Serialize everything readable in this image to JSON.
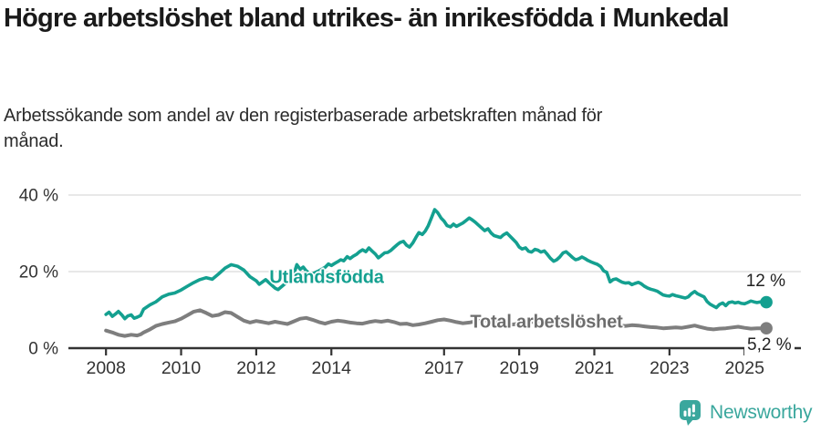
{
  "chart_data": {
    "type": "line",
    "title": "Högre arbetslöshet bland utrikes- än inrikesfödda i Munkedal",
    "subtitle": "Arbetssökande som andel av den registerbaserade arbetskraften månad för månad.",
    "xlabel": "",
    "ylabel": "",
    "unit": "%",
    "grid": "horizontal",
    "legend": "inline-labels",
    "x_range": [
      2007,
      2026.5
    ],
    "ylim": [
      0,
      40
    ],
    "x_ticks": [
      2008,
      2010,
      2012,
      2014,
      2017,
      2019,
      2021,
      2023,
      2025
    ],
    "y_ticks": [
      {
        "value": 0,
        "label": "0 %"
      },
      {
        "value": 20,
        "label": "20 %"
      },
      {
        "value": 40,
        "label": "40 %"
      }
    ],
    "axis_color": "#333333",
    "grid_color": "#d9d9d9",
    "series": [
      {
        "name": "Utlandsfödda",
        "color": "#14a090",
        "end_label": "12 %",
        "end_value": 12,
        "points": [
          [
            2008.0,
            8.8
          ],
          [
            2008.08,
            9.4
          ],
          [
            2008.17,
            8.3
          ],
          [
            2008.25,
            8.9
          ],
          [
            2008.33,
            9.6
          ],
          [
            2008.42,
            8.7
          ],
          [
            2008.5,
            7.7
          ],
          [
            2008.58,
            8.4
          ],
          [
            2008.67,
            8.7
          ],
          [
            2008.75,
            7.8
          ],
          [
            2008.83,
            8.1
          ],
          [
            2008.92,
            8.5
          ],
          [
            2009.0,
            10.2
          ],
          [
            2009.17,
            11.3
          ],
          [
            2009.33,
            12.1
          ],
          [
            2009.5,
            13.4
          ],
          [
            2009.67,
            14.1
          ],
          [
            2009.83,
            14.4
          ],
          [
            2010.0,
            15.2
          ],
          [
            2010.17,
            16.2
          ],
          [
            2010.33,
            17.1
          ],
          [
            2010.5,
            17.9
          ],
          [
            2010.67,
            18.4
          ],
          [
            2010.83,
            18.0
          ],
          [
            2011.0,
            19.4
          ],
          [
            2011.17,
            20.9
          ],
          [
            2011.33,
            21.8
          ],
          [
            2011.5,
            21.4
          ],
          [
            2011.67,
            20.4
          ],
          [
            2011.83,
            18.7
          ],
          [
            2012.0,
            17.6
          ],
          [
            2012.08,
            16.7
          ],
          [
            2012.25,
            17.9
          ],
          [
            2012.42,
            16.4
          ],
          [
            2012.5,
            15.7
          ],
          [
            2012.58,
            15.3
          ],
          [
            2012.75,
            16.7
          ],
          [
            2012.92,
            17.8
          ],
          [
            2013.0,
            19.3
          ],
          [
            2013.08,
            21.8
          ],
          [
            2013.17,
            20.6
          ],
          [
            2013.25,
            21.2
          ],
          [
            2013.33,
            20.2
          ],
          [
            2013.42,
            19.6
          ],
          [
            2013.5,
            19.4
          ],
          [
            2013.58,
            19.8
          ],
          [
            2013.67,
            20.2
          ],
          [
            2013.75,
            20.7
          ],
          [
            2013.83,
            21.1
          ],
          [
            2013.92,
            22.0
          ],
          [
            2014.0,
            21.6
          ],
          [
            2014.08,
            22.1
          ],
          [
            2014.17,
            22.6
          ],
          [
            2014.25,
            23.1
          ],
          [
            2014.33,
            22.8
          ],
          [
            2014.42,
            23.9
          ],
          [
            2014.5,
            23.4
          ],
          [
            2014.58,
            24.0
          ],
          [
            2014.67,
            24.5
          ],
          [
            2014.75,
            25.2
          ],
          [
            2014.83,
            25.7
          ],
          [
            2014.92,
            25.2
          ],
          [
            2015.0,
            26.2
          ],
          [
            2015.08,
            25.4
          ],
          [
            2015.17,
            24.6
          ],
          [
            2015.25,
            23.6
          ],
          [
            2015.33,
            24.2
          ],
          [
            2015.42,
            24.9
          ],
          [
            2015.5,
            25.0
          ],
          [
            2015.58,
            25.5
          ],
          [
            2015.67,
            26.3
          ],
          [
            2015.75,
            27.0
          ],
          [
            2015.83,
            27.6
          ],
          [
            2015.92,
            27.9
          ],
          [
            2016.0,
            26.9
          ],
          [
            2016.08,
            26.4
          ],
          [
            2016.17,
            27.5
          ],
          [
            2016.25,
            28.9
          ],
          [
            2016.33,
            30.2
          ],
          [
            2016.42,
            29.7
          ],
          [
            2016.5,
            30.6
          ],
          [
            2016.58,
            32.0
          ],
          [
            2016.67,
            34.2
          ],
          [
            2016.75,
            36.2
          ],
          [
            2016.83,
            35.4
          ],
          [
            2016.92,
            34.0
          ],
          [
            2017.0,
            33.2
          ],
          [
            2017.08,
            32.0
          ],
          [
            2017.17,
            31.7
          ],
          [
            2017.25,
            32.4
          ],
          [
            2017.33,
            31.8
          ],
          [
            2017.5,
            32.7
          ],
          [
            2017.67,
            34.0
          ],
          [
            2017.75,
            33.5
          ],
          [
            2017.83,
            32.9
          ],
          [
            2017.92,
            32.1
          ],
          [
            2018.0,
            31.4
          ],
          [
            2018.08,
            30.7
          ],
          [
            2018.17,
            31.2
          ],
          [
            2018.25,
            30.1
          ],
          [
            2018.33,
            29.4
          ],
          [
            2018.5,
            28.9
          ],
          [
            2018.58,
            29.6
          ],
          [
            2018.67,
            30.1
          ],
          [
            2018.83,
            28.5
          ],
          [
            2018.92,
            27.6
          ],
          [
            2019.0,
            26.4
          ],
          [
            2019.08,
            25.9
          ],
          [
            2019.17,
            26.2
          ],
          [
            2019.25,
            25.3
          ],
          [
            2019.33,
            25.1
          ],
          [
            2019.42,
            25.8
          ],
          [
            2019.5,
            25.6
          ],
          [
            2019.58,
            25.1
          ],
          [
            2019.67,
            25.4
          ],
          [
            2019.75,
            24.5
          ],
          [
            2019.83,
            23.5
          ],
          [
            2019.92,
            22.7
          ],
          [
            2020.0,
            23.1
          ],
          [
            2020.08,
            23.8
          ],
          [
            2020.17,
            24.9
          ],
          [
            2020.25,
            25.2
          ],
          [
            2020.33,
            24.5
          ],
          [
            2020.42,
            23.7
          ],
          [
            2020.5,
            23.1
          ],
          [
            2020.58,
            23.3
          ],
          [
            2020.67,
            23.8
          ],
          [
            2020.75,
            23.4
          ],
          [
            2020.83,
            22.9
          ],
          [
            2020.92,
            22.5
          ],
          [
            2021.0,
            22.2
          ],
          [
            2021.08,
            21.9
          ],
          [
            2021.17,
            21.3
          ],
          [
            2021.25,
            20.2
          ],
          [
            2021.33,
            19.8
          ],
          [
            2021.42,
            17.3
          ],
          [
            2021.5,
            17.9
          ],
          [
            2021.58,
            18.1
          ],
          [
            2021.67,
            17.6
          ],
          [
            2021.75,
            17.2
          ],
          [
            2021.83,
            17.0
          ],
          [
            2021.92,
            17.1
          ],
          [
            2022.0,
            16.6
          ],
          [
            2022.08,
            16.9
          ],
          [
            2022.17,
            17.2
          ],
          [
            2022.25,
            16.8
          ],
          [
            2022.33,
            16.2
          ],
          [
            2022.42,
            15.7
          ],
          [
            2022.5,
            15.4
          ],
          [
            2022.58,
            15.2
          ],
          [
            2022.67,
            14.9
          ],
          [
            2022.75,
            14.4
          ],
          [
            2022.83,
            13.9
          ],
          [
            2022.92,
            13.7
          ],
          [
            2023.0,
            13.6
          ],
          [
            2023.08,
            14.0
          ],
          [
            2023.17,
            13.7
          ],
          [
            2023.25,
            13.5
          ],
          [
            2023.33,
            13.3
          ],
          [
            2023.42,
            13.1
          ],
          [
            2023.5,
            13.4
          ],
          [
            2023.58,
            14.2
          ],
          [
            2023.67,
            14.8
          ],
          [
            2023.75,
            14.2
          ],
          [
            2023.83,
            13.8
          ],
          [
            2023.92,
            13.4
          ],
          [
            2024.0,
            12.2
          ],
          [
            2024.08,
            11.5
          ],
          [
            2024.17,
            11.0
          ],
          [
            2024.25,
            10.6
          ],
          [
            2024.33,
            11.4
          ],
          [
            2024.42,
            11.8
          ],
          [
            2024.5,
            11.1
          ],
          [
            2024.58,
            11.9
          ],
          [
            2024.67,
            12.1
          ],
          [
            2024.75,
            11.8
          ],
          [
            2024.83,
            12.0
          ],
          [
            2024.92,
            11.7
          ],
          [
            2025.0,
            11.6
          ],
          [
            2025.08,
            11.9
          ],
          [
            2025.17,
            12.3
          ],
          [
            2025.25,
            12.1
          ],
          [
            2025.33,
            11.9
          ],
          [
            2025.42,
            12.1
          ],
          [
            2025.58,
            12.0
          ]
        ]
      },
      {
        "name": "Total arbetslöshet",
        "color": "#7e7e7e",
        "end_label": "5,2 %",
        "end_value": 5.2,
        "points": [
          [
            2008.0,
            4.6
          ],
          [
            2008.17,
            4.1
          ],
          [
            2008.33,
            3.5
          ],
          [
            2008.5,
            3.2
          ],
          [
            2008.67,
            3.5
          ],
          [
            2008.83,
            3.3
          ],
          [
            2008.92,
            3.6
          ],
          [
            2009.0,
            4.1
          ],
          [
            2009.17,
            4.9
          ],
          [
            2009.33,
            5.8
          ],
          [
            2009.5,
            6.3
          ],
          [
            2009.67,
            6.7
          ],
          [
            2009.83,
            7.0
          ],
          [
            2010.0,
            7.7
          ],
          [
            2010.17,
            8.6
          ],
          [
            2010.33,
            9.5
          ],
          [
            2010.5,
            9.9
          ],
          [
            2010.67,
            9.2
          ],
          [
            2010.83,
            8.4
          ],
          [
            2011.0,
            8.7
          ],
          [
            2011.17,
            9.4
          ],
          [
            2011.33,
            9.2
          ],
          [
            2011.5,
            8.2
          ],
          [
            2011.67,
            7.2
          ],
          [
            2011.83,
            6.7
          ],
          [
            2012.0,
            7.1
          ],
          [
            2012.17,
            6.8
          ],
          [
            2012.33,
            6.5
          ],
          [
            2012.5,
            6.9
          ],
          [
            2012.67,
            6.6
          ],
          [
            2012.83,
            6.3
          ],
          [
            2013.0,
            7.0
          ],
          [
            2013.17,
            7.7
          ],
          [
            2013.33,
            7.9
          ],
          [
            2013.5,
            7.4
          ],
          [
            2013.67,
            6.8
          ],
          [
            2013.83,
            6.4
          ],
          [
            2014.0,
            6.9
          ],
          [
            2014.17,
            7.2
          ],
          [
            2014.33,
            7.0
          ],
          [
            2014.5,
            6.7
          ],
          [
            2014.67,
            6.5
          ],
          [
            2014.83,
            6.4
          ],
          [
            2015.0,
            6.8
          ],
          [
            2015.17,
            7.1
          ],
          [
            2015.33,
            6.9
          ],
          [
            2015.5,
            7.2
          ],
          [
            2015.67,
            6.8
          ],
          [
            2015.83,
            6.3
          ],
          [
            2016.0,
            6.4
          ],
          [
            2016.17,
            6.0
          ],
          [
            2016.33,
            6.2
          ],
          [
            2016.5,
            6.5
          ],
          [
            2016.67,
            6.9
          ],
          [
            2016.83,
            7.3
          ],
          [
            2017.0,
            7.5
          ],
          [
            2017.17,
            7.2
          ],
          [
            2017.33,
            6.8
          ],
          [
            2017.5,
            6.5
          ],
          [
            2017.67,
            6.7
          ],
          [
            2017.83,
            7.0
          ],
          [
            2018.0,
            7.2
          ],
          [
            2018.17,
            7.3
          ],
          [
            2018.33,
            6.9
          ],
          [
            2018.5,
            6.6
          ],
          [
            2018.67,
            6.3
          ],
          [
            2018.83,
            6.2
          ],
          [
            2019.0,
            6.4
          ],
          [
            2019.17,
            6.6
          ],
          [
            2019.33,
            6.8
          ],
          [
            2019.5,
            7.0
          ],
          [
            2019.67,
            6.8
          ],
          [
            2019.83,
            6.5
          ],
          [
            2020.0,
            6.6
          ],
          [
            2020.17,
            7.1
          ],
          [
            2020.33,
            7.4
          ],
          [
            2020.5,
            7.2
          ],
          [
            2020.67,
            7.0
          ],
          [
            2020.83,
            6.8
          ],
          [
            2021.0,
            6.9
          ],
          [
            2021.17,
            6.6
          ],
          [
            2021.33,
            6.3
          ],
          [
            2021.5,
            6.1
          ],
          [
            2021.67,
            5.9
          ],
          [
            2021.83,
            5.8
          ],
          [
            2022.0,
            6.0
          ],
          [
            2022.17,
            5.9
          ],
          [
            2022.33,
            5.7
          ],
          [
            2022.5,
            5.5
          ],
          [
            2022.67,
            5.4
          ],
          [
            2022.83,
            5.2
          ],
          [
            2023.0,
            5.3
          ],
          [
            2023.17,
            5.4
          ],
          [
            2023.33,
            5.3
          ],
          [
            2023.5,
            5.6
          ],
          [
            2023.67,
            5.9
          ],
          [
            2023.83,
            5.5
          ],
          [
            2024.0,
            5.1
          ],
          [
            2024.17,
            4.9
          ],
          [
            2024.33,
            5.1
          ],
          [
            2024.5,
            5.2
          ],
          [
            2024.67,
            5.4
          ],
          [
            2024.83,
            5.6
          ],
          [
            2025.0,
            5.3
          ],
          [
            2025.17,
            5.1
          ],
          [
            2025.33,
            5.2
          ],
          [
            2025.58,
            5.2
          ]
        ]
      }
    ]
  },
  "footer": {
    "brand": "Newsworthy",
    "logo_icon": "bar-chart-speech-bubble-icon",
    "accent_color": "#3aa79d"
  }
}
